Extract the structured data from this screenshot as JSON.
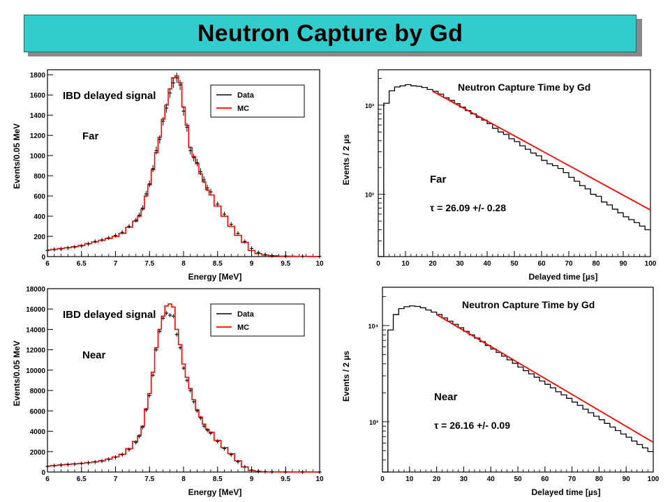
{
  "title": "Neutron Capture by Gd",
  "chart_data": [
    {
      "type": "line",
      "panel": "top-left",
      "ylabel": "Events/0.05 MeV",
      "xlabel": "Energy [MeV]",
      "xlim": [
        6,
        10
      ],
      "ylim": [
        0,
        1850
      ],
      "xticks": [
        "6",
        "6.5",
        "7",
        "7.5",
        "8",
        "8.5",
        "9",
        "9.5",
        "10"
      ],
      "yticks": [
        "0",
        "200",
        "400",
        "600",
        "800",
        "1000",
        "1200",
        "1400",
        "1600",
        "1800"
      ],
      "label": "IBD delayed signal",
      "site": "Far",
      "legend": {
        "position": "top-right",
        "items": [
          "Data",
          "MC"
        ]
      },
      "colors": {
        "data": "#000000",
        "mc": "#ff0000"
      },
      "x": [
        6.0,
        6.1,
        6.2,
        6.3,
        6.4,
        6.5,
        6.6,
        6.7,
        6.8,
        6.9,
        7.0,
        7.1,
        7.2,
        7.3,
        7.35,
        7.4,
        7.45,
        7.5,
        7.55,
        7.6,
        7.65,
        7.7,
        7.75,
        7.8,
        7.85,
        7.9,
        7.95,
        8.0,
        8.05,
        8.1,
        8.15,
        8.2,
        8.25,
        8.3,
        8.35,
        8.4,
        8.5,
        8.6,
        8.7,
        8.8,
        8.9,
        9.0,
        9.1,
        9.2,
        9.3,
        9.5,
        9.75,
        10.0
      ],
      "series": [
        {
          "name": "Data",
          "values": [
            60,
            70,
            75,
            85,
            95,
            105,
            125,
            150,
            165,
            185,
            210,
            240,
            300,
            360,
            410,
            480,
            620,
            720,
            870,
            1050,
            1160,
            1340,
            1470,
            1620,
            1720,
            1770,
            1700,
            1440,
            1280,
            1050,
            980,
            930,
            840,
            760,
            680,
            640,
            520,
            420,
            320,
            230,
            150,
            80,
            40,
            20,
            10,
            5,
            3,
            2
          ]
        },
        {
          "name": "MC",
          "values": [
            65,
            72,
            80,
            88,
            98,
            110,
            128,
            145,
            162,
            180,
            200,
            230,
            290,
            350,
            400,
            470,
            600,
            710,
            860,
            1030,
            1180,
            1360,
            1500,
            1660,
            1770,
            1790,
            1720,
            1480,
            1300,
            1080,
            990,
            920,
            820,
            740,
            660,
            610,
            500,
            400,
            300,
            210,
            140,
            60,
            30,
            15,
            8,
            4,
            2,
            1
          ]
        }
      ]
    },
    {
      "type": "line",
      "panel": "top-right",
      "title": "Neutron Capture Time by Gd",
      "ylabel": "Events / 2 µs",
      "xlabel": "Delayed time [µs]",
      "xlim": [
        0,
        100
      ],
      "ylim_log": [
        20,
        2500
      ],
      "yscale": "log",
      "xticks": [
        "0",
        "10",
        "20",
        "30",
        "40",
        "50",
        "60",
        "70",
        "80",
        "90",
        "100"
      ],
      "yticks": [
        "10²",
        "10³"
      ],
      "site": "Far",
      "fit_text": "τ = 26.09 +/- 0.28",
      "colors": {
        "data": "#000000",
        "fit": "#ff0000"
      },
      "histogram": {
        "bin_width": 2,
        "x": [
          0,
          2,
          4,
          6,
          8,
          10,
          12,
          14,
          16,
          18,
          20,
          22,
          24,
          26,
          28,
          30,
          32,
          34,
          36,
          38,
          40,
          42,
          44,
          46,
          48,
          50,
          52,
          54,
          56,
          58,
          60,
          62,
          64,
          66,
          68,
          70,
          72,
          74,
          76,
          78,
          80,
          82,
          84,
          86,
          88,
          90,
          92,
          94,
          96,
          98
        ],
        "values": [
          20,
          1050,
          1450,
          1600,
          1650,
          1700,
          1650,
          1630,
          1580,
          1500,
          1430,
          1330,
          1210,
          1130,
          1040,
          950,
          870,
          800,
          730,
          680,
          620,
          550,
          500,
          470,
          420,
          390,
          350,
          320,
          290,
          270,
          240,
          220,
          210,
          195,
          175,
          155,
          140,
          125,
          115,
          100,
          95,
          82,
          76,
          68,
          62,
          56,
          52,
          48,
          44,
          40
        ]
      },
      "fit": {
        "tau": 26.09,
        "x_start": 20,
        "x_end": 100,
        "y_start": 1430
      }
    },
    {
      "type": "line",
      "panel": "bottom-left",
      "ylabel": "Events/0.05 MeV",
      "xlabel": "Energy [MeV]",
      "xlim": [
        6,
        10
      ],
      "ylim": [
        0,
        18000
      ],
      "xticks": [
        "6",
        "6.5",
        "7",
        "7.5",
        "8",
        "8.5",
        "9",
        "9.5",
        "10"
      ],
      "yticks": [
        "0",
        "2000",
        "4000",
        "6000",
        "8000",
        "10000",
        "12000",
        "14000",
        "16000",
        "18000"
      ],
      "label": "IBD delayed signal",
      "site": "Near",
      "legend": {
        "position": "top-right",
        "items": [
          "Data",
          "MC"
        ]
      },
      "colors": {
        "data": "#000000",
        "mc": "#ff0000"
      },
      "x": [
        6.0,
        6.1,
        6.2,
        6.3,
        6.4,
        6.5,
        6.6,
        6.7,
        6.8,
        6.9,
        7.0,
        7.1,
        7.2,
        7.3,
        7.35,
        7.4,
        7.45,
        7.5,
        7.55,
        7.6,
        7.65,
        7.7,
        7.75,
        7.8,
        7.85,
        7.9,
        7.95,
        8.0,
        8.05,
        8.1,
        8.15,
        8.2,
        8.25,
        8.3,
        8.35,
        8.4,
        8.5,
        8.6,
        8.7,
        8.8,
        8.9,
        9.0,
        9.1,
        9.2,
        9.3,
        9.5,
        9.75,
        10.0
      ],
      "series": [
        {
          "name": "Data",
          "values": [
            550,
            620,
            680,
            730,
            780,
            830,
            900,
            980,
            1080,
            1250,
            1450,
            1700,
            2200,
            2900,
            3500,
            4400,
            6100,
            7500,
            9500,
            12000,
            13800,
            15100,
            15600,
            15400,
            15300,
            13500,
            12200,
            10200,
            9000,
            8000,
            6900,
            6000,
            5300,
            4500,
            4100,
            3800,
            3000,
            2300,
            1700,
            1000,
            500,
            200,
            80,
            40,
            20,
            10,
            5,
            3
          ]
        },
        {
          "name": "MC",
          "values": [
            580,
            640,
            700,
            750,
            800,
            850,
            920,
            1000,
            1100,
            1270,
            1480,
            1750,
            2300,
            3000,
            3600,
            4500,
            6200,
            7700,
            9800,
            12200,
            14000,
            15300,
            16300,
            16500,
            16200,
            14000,
            12500,
            10600,
            9300,
            8200,
            7100,
            6100,
            5400,
            4700,
            4200,
            3900,
            3100,
            2400,
            1800,
            1100,
            500,
            150,
            60,
            25,
            10,
            5,
            2,
            1
          ]
        }
      ]
    },
    {
      "type": "line",
      "panel": "bottom-right",
      "title": "Neutron Capture Time by Gd",
      "ylabel": "Events / 2 µs",
      "xlabel": "Delayed time [µs]",
      "xlim": [
        0,
        100
      ],
      "ylim_log": [
        300,
        25000
      ],
      "yscale": "log",
      "xticks": [
        "0",
        "10",
        "20",
        "30",
        "40",
        "50",
        "60",
        "70",
        "80",
        "90",
        "100"
      ],
      "yticks": [
        "10³",
        "10⁴"
      ],
      "site": "Near",
      "fit_text": "τ = 26.16 +/- 0.09",
      "colors": {
        "data": "#000000",
        "fit": "#ff0000"
      },
      "histogram": {
        "bin_width": 2,
        "x": [
          0,
          2,
          4,
          6,
          8,
          10,
          12,
          14,
          16,
          18,
          20,
          22,
          24,
          26,
          28,
          30,
          32,
          34,
          36,
          38,
          40,
          42,
          44,
          46,
          48,
          50,
          52,
          54,
          56,
          58,
          60,
          62,
          64,
          66,
          68,
          70,
          72,
          74,
          76,
          78,
          80,
          82,
          84,
          86,
          88,
          90,
          92,
          94,
          96,
          98
        ],
        "values": [
          300,
          9000,
          13000,
          15000,
          15700,
          16000,
          15800,
          15300,
          14500,
          13800,
          13000,
          12000,
          11100,
          10300,
          9500,
          8700,
          8000,
          7400,
          6800,
          6200,
          5700,
          5250,
          4800,
          4400,
          4050,
          3700,
          3400,
          3150,
          2900,
          2650,
          2450,
          2250,
          2050,
          1900,
          1750,
          1600,
          1480,
          1350,
          1240,
          1140,
          1050,
          960,
          880,
          810,
          745,
          690,
          630,
          580,
          535,
          490
        ]
      },
      "fit": {
        "tau": 26.16,
        "x_start": 20,
        "x_end": 100,
        "y_start": 13000
      }
    }
  ]
}
